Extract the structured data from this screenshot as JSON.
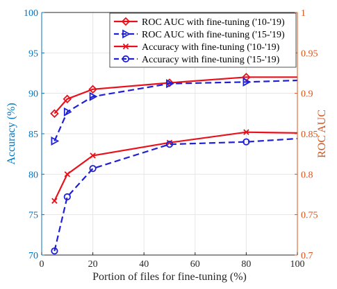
{
  "chart_data": {
    "type": "line",
    "xlabel": "Portion of files for fine-tuning (%)",
    "ylabel_left": "Accuracy (%)",
    "ylabel_right": "ROC AUC",
    "xlim": [
      0,
      100
    ],
    "ylim_left": [
      70,
      100
    ],
    "ylim_right": [
      0.7,
      1.0
    ],
    "x_ticks": [
      "0",
      "20",
      "40",
      "60",
      "80",
      "100"
    ],
    "y_ticks_left": [
      "70",
      "75",
      "80",
      "85",
      "90",
      "95",
      "100"
    ],
    "y_ticks_right": [
      "0.7",
      "0.75",
      "0.8",
      "0.85",
      "0.9",
      "0.95",
      "1"
    ],
    "grid": true,
    "legend_position": "top-right",
    "colors": {
      "red": "#E8111B",
      "blue": "#1F1FD6",
      "left_axis": "#0072BD",
      "right_axis": "#D95319",
      "grid": "#E6E6E6",
      "axis_bottom": "#262626"
    },
    "series": [
      {
        "name": "ROC AUC with fine-tuning ('10-'19)",
        "axis": "right",
        "color": "red",
        "dash": "solid",
        "marker": "diamond",
        "x": [
          5,
          10,
          20,
          50,
          80,
          100
        ],
        "y": [
          0.875,
          0.893,
          0.905,
          0.913,
          0.92,
          0.92
        ],
        "marked": [
          true,
          true,
          true,
          true,
          true,
          false
        ]
      },
      {
        "name": "ROC AUC with fine-tuning ('15-'19)",
        "axis": "right",
        "color": "blue",
        "dash": "dashed",
        "marker": "triangle-right",
        "x": [
          5,
          10,
          20,
          50,
          80,
          100
        ],
        "y": [
          0.841,
          0.877,
          0.896,
          0.912,
          0.914,
          0.916
        ],
        "marked": [
          true,
          true,
          true,
          true,
          true,
          false
        ]
      },
      {
        "name": "Accuracy with fine-tuning ('10-'19)",
        "axis": "left",
        "color": "red",
        "dash": "solid",
        "marker": "x",
        "x": [
          5,
          10,
          20,
          50,
          80,
          100
        ],
        "y": [
          76.7,
          80.0,
          82.3,
          83.9,
          85.2,
          85.1
        ],
        "marked": [
          true,
          true,
          true,
          true,
          true,
          false
        ]
      },
      {
        "name": "Accuracy with fine-tuning ('15-'19)",
        "axis": "left",
        "color": "blue",
        "dash": "dashed",
        "marker": "circle",
        "x": [
          5,
          10,
          20,
          50,
          80,
          100
        ],
        "y": [
          70.5,
          77.2,
          80.7,
          83.7,
          84.0,
          84.4
        ],
        "marked": [
          true,
          true,
          true,
          true,
          true,
          false
        ]
      }
    ]
  }
}
